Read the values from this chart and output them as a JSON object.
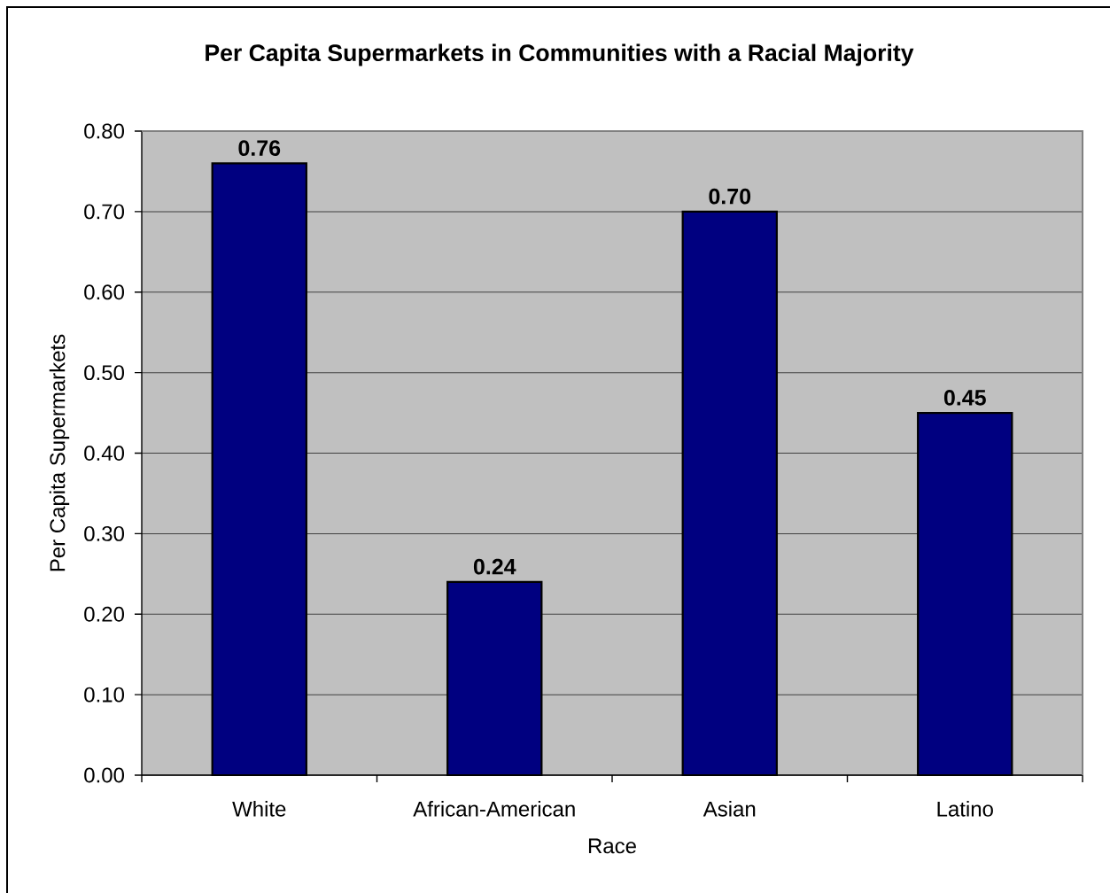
{
  "chart_data": {
    "type": "bar",
    "title": "Per Capita Supermarkets in Communities with a Racial Majority",
    "xlabel": "Race",
    "ylabel": "Per Capita Supermarkets",
    "categories": [
      "White",
      "African-American",
      "Asian",
      "Latino"
    ],
    "values": [
      0.76,
      0.24,
      0.7,
      0.45
    ],
    "value_labels": [
      "0.76",
      "0.24",
      "0.70",
      "0.45"
    ],
    "color": "#000080",
    "ylim": [
      0,
      0.8
    ],
    "yticks": [
      {
        "value": 0,
        "label": "0.00"
      },
      {
        "value": 0.1,
        "label": "0.10"
      },
      {
        "value": 0.2,
        "label": "0.20"
      },
      {
        "value": 0.3,
        "label": "0.30"
      },
      {
        "value": 0.4,
        "label": "0.40"
      },
      {
        "value": 0.5,
        "label": "0.50"
      },
      {
        "value": 0.6,
        "label": "0.60"
      },
      {
        "value": 0.7,
        "label": "0.70"
      },
      {
        "value": 0.8,
        "label": "0.80"
      }
    ],
    "grid": "y"
  }
}
